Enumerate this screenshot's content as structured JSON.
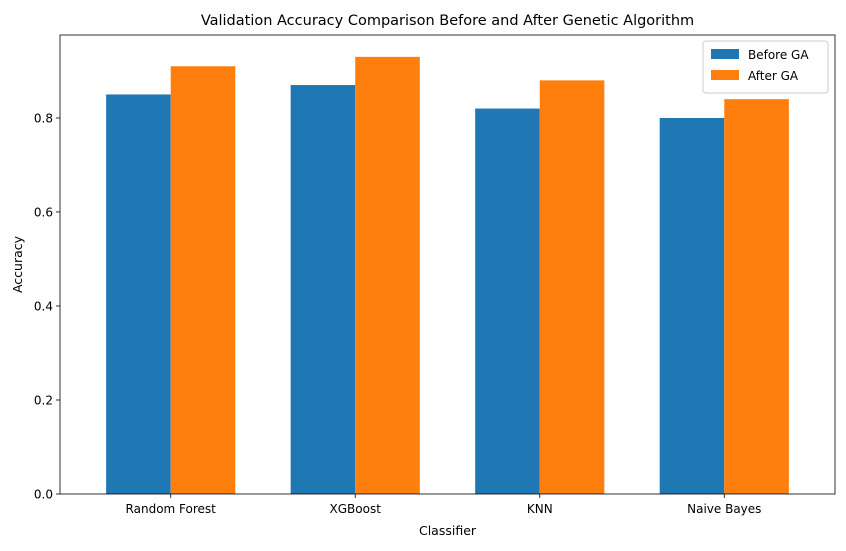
{
  "chart_data": {
    "type": "bar",
    "title": "Validation Accuracy Comparison Before and After Genetic Algorithm",
    "xlabel": "Classifier",
    "ylabel": "Accuracy",
    "categories": [
      "Random Forest",
      "XGBoost",
      "KNN",
      "Naive Bayes"
    ],
    "series": [
      {
        "name": "Before GA",
        "color": "#1f77b4",
        "values": [
          0.85,
          0.87,
          0.82,
          0.8
        ]
      },
      {
        "name": "After GA",
        "color": "#ff7f0e",
        "values": [
          0.91,
          0.93,
          0.88,
          0.84
        ]
      }
    ],
    "ylim": [
      0,
      0.9765
    ],
    "yticks": [
      0.0,
      0.2,
      0.4,
      0.6,
      0.8
    ],
    "ytick_labels": [
      "0.0",
      "0.2",
      "0.4",
      "0.6",
      "0.8"
    ],
    "legend_position": "top-right",
    "grid": false
  }
}
